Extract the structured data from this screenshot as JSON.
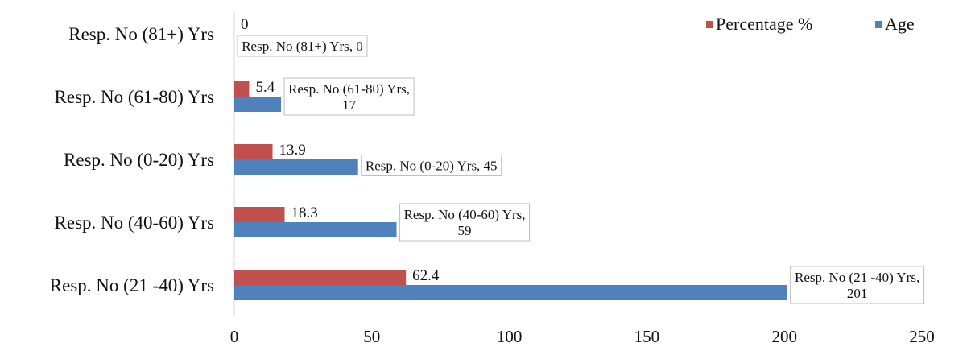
{
  "chart_data": {
    "type": "bar",
    "orientation": "horizontal",
    "categories": [
      "Resp. No (21 -40) Yrs",
      "Resp. No (40-60) Yrs",
      "Resp. No (0-20) Yrs",
      "Resp. No (61-80) Yrs",
      "Resp. No (81+) Yrs"
    ],
    "series": [
      {
        "name": "Percentage %",
        "color": "#c0504d",
        "values": [
          62.4,
          18.3,
          13.9,
          5.4,
          0
        ],
        "labels": [
          "62.4",
          "18.3",
          "13.9",
          "5.4",
          "0"
        ]
      },
      {
        "name": "Age",
        "color": "#4f81bd",
        "values": [
          201,
          59,
          45,
          17,
          0
        ],
        "callouts": [
          [
            "Resp. No (21 -40) Yrs,",
            "201"
          ],
          [
            "Resp. No (40-60) Yrs,",
            "59"
          ],
          [
            "Resp. No (0-20) Yrs, 45"
          ],
          [
            "Resp. No (61-80) Yrs,",
            "17"
          ],
          [
            "Resp. No (81+) Yrs, 0"
          ]
        ]
      }
    ],
    "xlim": [
      0,
      250
    ],
    "xticks": [
      "0",
      "50",
      "100",
      "150",
      "200",
      "250"
    ],
    "grid": false,
    "legend": {
      "position": "top-right",
      "order": [
        "Percentage %",
        "Age"
      ]
    },
    "title": "",
    "xlabel": "",
    "ylabel": ""
  }
}
